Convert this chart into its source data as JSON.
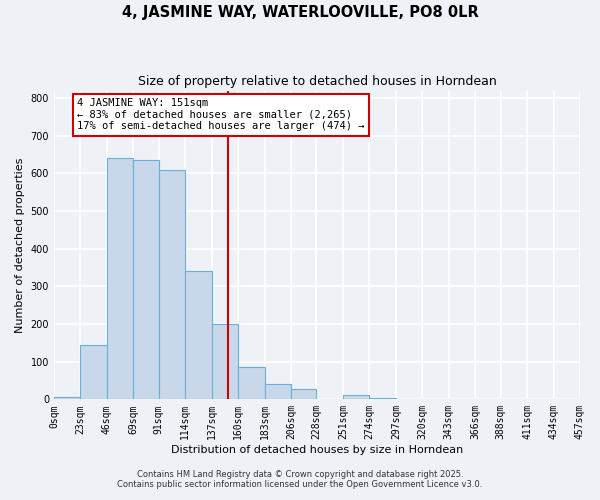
{
  "title": "4, JASMINE WAY, WATERLOOVILLE, PO8 0LR",
  "subtitle": "Size of property relative to detached houses in Horndean",
  "xlabel": "Distribution of detached houses by size in Horndean",
  "ylabel": "Number of detached properties",
  "bar_heights": [
    5,
    145,
    640,
    635,
    610,
    340,
    200,
    85,
    42,
    27,
    0,
    12,
    3,
    0,
    0,
    0,
    0,
    0,
    0,
    2
  ],
  "bin_edges": [
    0,
    23,
    46,
    69,
    91,
    114,
    137,
    160,
    183,
    206,
    228,
    251,
    274,
    297,
    320,
    343,
    366,
    388,
    411,
    434,
    457
  ],
  "tick_labels": [
    "0sqm",
    "23sqm",
    "46sqm",
    "69sqm",
    "91sqm",
    "114sqm",
    "137sqm",
    "160sqm",
    "183sqm",
    "206sqm",
    "228sqm",
    "251sqm",
    "274sqm",
    "297sqm",
    "320sqm",
    "343sqm",
    "366sqm",
    "388sqm",
    "411sqm",
    "434sqm",
    "457sqm"
  ],
  "bar_color": "#c8d8ea",
  "bar_edge_color": "#6aafd6",
  "vline_x": 151,
  "vline_color": "#cc0000",
  "annotation_title": "4 JASMINE WAY: 151sqm",
  "annotation_line1": "← 83% of detached houses are smaller (2,265)",
  "annotation_line2": "17% of semi-detached houses are larger (474) →",
  "annotation_box_edge": "#cc0000",
  "ylim": [
    0,
    820
  ],
  "yticks": [
    0,
    100,
    200,
    300,
    400,
    500,
    600,
    700,
    800
  ],
  "footnote1": "Contains HM Land Registry data © Crown copyright and database right 2025.",
  "footnote2": "Contains public sector information licensed under the Open Government Licence v3.0.",
  "background_color": "#eef2f7",
  "grid_color": "#ffffff",
  "title_fontsize": 10.5,
  "subtitle_fontsize": 9,
  "axis_label_fontsize": 8,
  "tick_fontsize": 7,
  "annotation_fontsize": 7.5,
  "footnote_fontsize": 6
}
